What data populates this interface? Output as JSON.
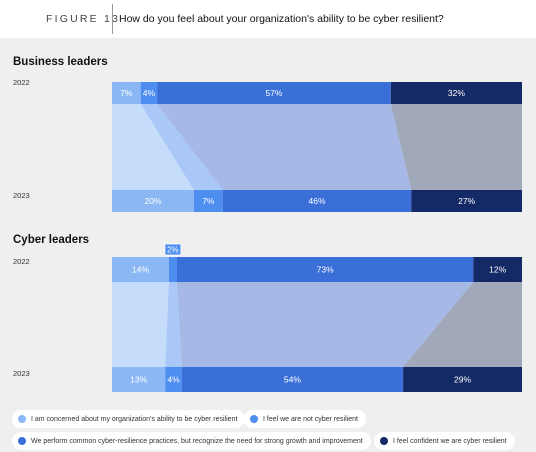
{
  "figure": {
    "label": "FIGURE 13",
    "title": "How do you feel about your organization's ability to be cyber resilient?"
  },
  "chart_data": [
    {
      "type": "bar",
      "stacked": true,
      "orientation": "horizontal",
      "title": "Business leaders",
      "categories": [
        "2022",
        "2023"
      ],
      "series": [
        {
          "name": "I am concerned about my organization's ability to be cyber resilient",
          "values": [
            7,
            20
          ]
        },
        {
          "name": "I feel we are not cyber resilient",
          "values": [
            4,
            7
          ]
        },
        {
          "name": "We perform common cyber-resilience practices, but recognize the need for strong growth and improvement",
          "values": [
            57,
            46
          ]
        },
        {
          "name": "I feel confident we are cyber resilient",
          "values": [
            32,
            27
          ]
        }
      ],
      "data_labels": [
        [
          "7%",
          "4%",
          "57%",
          "32%"
        ],
        [
          "20%",
          "7%",
          "46%",
          "27%"
        ]
      ]
    },
    {
      "type": "bar",
      "stacked": true,
      "orientation": "horizontal",
      "title": "Cyber leaders",
      "categories": [
        "2022",
        "2023"
      ],
      "series": [
        {
          "name": "I am concerned about my organization's ability to be cyber resilient",
          "values": [
            14,
            13
          ]
        },
        {
          "name": "I feel we are not cyber resilient",
          "values": [
            2,
            4
          ]
        },
        {
          "name": "We perform common cyber-resilience practices, but recognize the need for strong growth and improvement",
          "values": [
            73,
            54
          ]
        },
        {
          "name": "I feel confident we are cyber resilient",
          "values": [
            12,
            29
          ]
        }
      ],
      "data_labels": [
        [
          "14%",
          "2%",
          "73%",
          "12%"
        ],
        [
          "13%",
          "4%",
          "54%",
          "29%"
        ]
      ]
    }
  ],
  "colors": {
    "concerned": "#8bb8f5",
    "not_resilient": "#4d8ef0",
    "perform": "#3b6fd8",
    "confident": "#142a66",
    "flow_concerned": "#c5dcfb",
    "flow_not_resilient": "#a9c8f7",
    "flow_perform": "#a6b8e6",
    "flow_confident": "#a0a8ba"
  },
  "legend": [
    {
      "label": "I am concerned about my organization's ability to be cyber resilient",
      "color": "#8bb8f5"
    },
    {
      "label": "I feel we are not cyber resilient",
      "color": "#4d8ef0"
    },
    {
      "label": "We perform common cyber-resilience practices, but recognize the need for strong growth and improvement",
      "color": "#3b6fd8"
    },
    {
      "label": "I feel confident we are cyber resilient",
      "color": "#142a66"
    }
  ]
}
